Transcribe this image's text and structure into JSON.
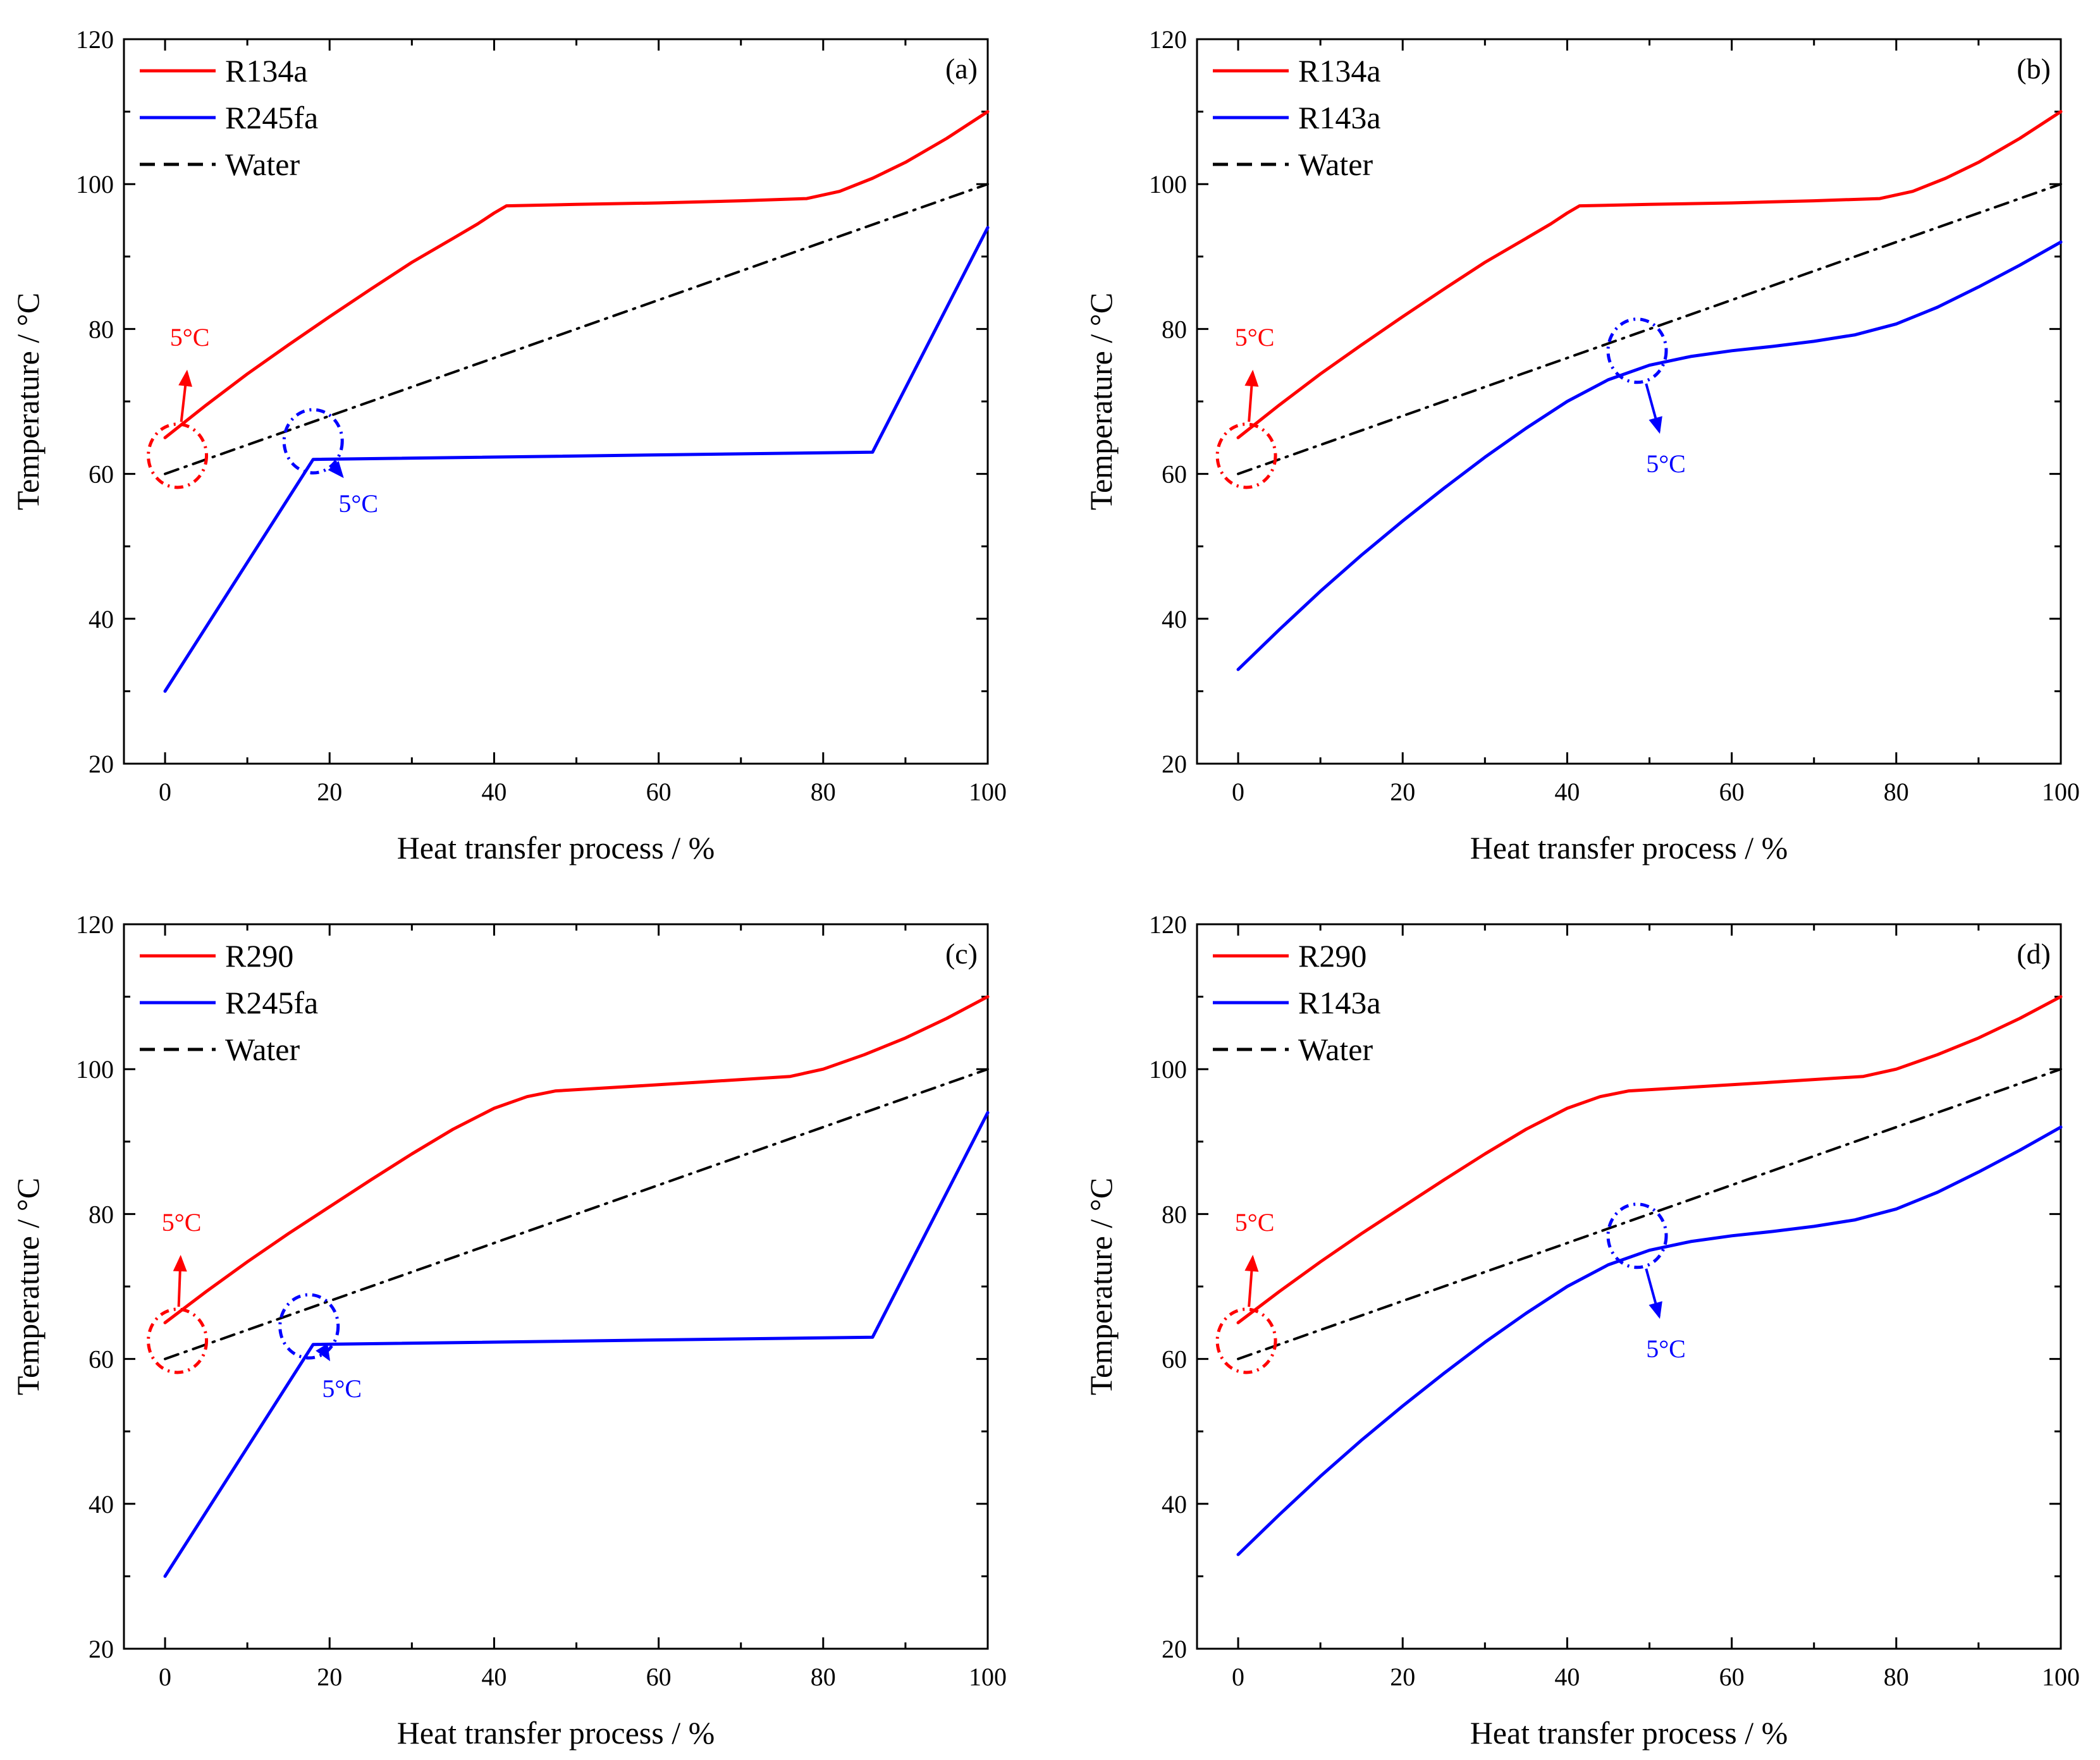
{
  "chart_data": [
    {
      "type": "line",
      "panel_label": "(a)",
      "xlabel": "Heat transfer process / %",
      "ylabel": "Temperature / °C",
      "xlim": [
        -5,
        100
      ],
      "ylim": [
        20,
        120
      ],
      "xticks": [
        0,
        20,
        40,
        60,
        80,
        100
      ],
      "yticks": [
        20,
        40,
        60,
        80,
        100,
        120
      ],
      "legend_position": "top-left",
      "series": [
        {
          "name": "R134a",
          "color": "#ff0000",
          "style": "solid",
          "x": [
            0,
            5,
            10,
            15,
            20,
            25,
            30,
            35,
            38,
            40,
            41.5,
            50,
            60,
            70,
            78,
            82,
            86,
            90,
            95,
            100
          ],
          "y": [
            65,
            69.5,
            73.8,
            77.8,
            81.7,
            85.5,
            89.2,
            92.5,
            94.5,
            96,
            97,
            97.2,
            97.4,
            97.7,
            98,
            99,
            100.8,
            103,
            106.3,
            110
          ]
        },
        {
          "name": "R245fa",
          "color": "#0000ff",
          "style": "solid",
          "x": [
            0,
            18,
            86,
            100
          ],
          "y": [
            30,
            62,
            63,
            94
          ]
        },
        {
          "name": "Water",
          "color": "#000000",
          "style": "dashed",
          "x": [
            0,
            100
          ],
          "y": [
            60,
            100
          ]
        }
      ],
      "annotations": [
        {
          "text": "5°C",
          "color": "#ff0000",
          "circle_at": [
            1.5,
            62.5
          ],
          "label_at": [
            3,
            77.5
          ]
        },
        {
          "text": "5°C",
          "color": "#0000ff",
          "circle_at": [
            18,
            64.5
          ],
          "label_at": [
            23.5,
            57
          ]
        }
      ]
    },
    {
      "type": "line",
      "panel_label": "(b)",
      "xlabel": "Heat transfer process / %",
      "ylabel": "Temperature / °C",
      "xlim": [
        -5,
        100
      ],
      "ylim": [
        20,
        120
      ],
      "xticks": [
        0,
        20,
        40,
        60,
        80,
        100
      ],
      "yticks": [
        20,
        40,
        60,
        80,
        100,
        120
      ],
      "legend_position": "top-left",
      "series": [
        {
          "name": "R134a",
          "color": "#ff0000",
          "style": "solid",
          "x": [
            0,
            5,
            10,
            15,
            20,
            25,
            30,
            35,
            38,
            40,
            41.5,
            50,
            60,
            70,
            78,
            82,
            86,
            90,
            95,
            100
          ],
          "y": [
            65,
            69.5,
            73.8,
            77.8,
            81.7,
            85.5,
            89.2,
            92.5,
            94.5,
            96,
            97,
            97.2,
            97.4,
            97.7,
            98,
            99,
            100.8,
            103,
            106.3,
            110
          ]
        },
        {
          "name": "R143a",
          "color": "#0000ff",
          "style": "solid",
          "x": [
            0,
            5,
            10,
            15,
            20,
            25,
            30,
            35,
            40,
            45,
            50,
            55,
            60,
            65,
            70,
            75,
            80,
            85,
            90,
            95,
            100
          ],
          "y": [
            33,
            38.5,
            43.8,
            48.8,
            53.5,
            58,
            62.3,
            66.3,
            70,
            73,
            75,
            76.2,
            77,
            77.6,
            78.3,
            79.2,
            80.7,
            83,
            85.8,
            88.8,
            92
          ]
        },
        {
          "name": "Water",
          "color": "#000000",
          "style": "dashed",
          "x": [
            0,
            100
          ],
          "y": [
            60,
            100
          ]
        }
      ],
      "annotations": [
        {
          "text": "5°C",
          "color": "#ff0000",
          "circle_at": [
            1,
            62.5
          ],
          "label_at": [
            2,
            77.5
          ]
        },
        {
          "text": "5°C",
          "color": "#0000ff",
          "circle_at": [
            48.5,
            77
          ],
          "label_at": [
            52,
            62.5
          ]
        }
      ]
    },
    {
      "type": "line",
      "panel_label": "(c)",
      "xlabel": "Heat transfer process / %",
      "ylabel": "Temperature / °C",
      "xlim": [
        -5,
        100
      ],
      "ylim": [
        20,
        120
      ],
      "xticks": [
        0,
        20,
        40,
        60,
        80,
        100
      ],
      "yticks": [
        20,
        40,
        60,
        80,
        100,
        120
      ],
      "legend_position": "top-left",
      "series": [
        {
          "name": "R290",
          "color": "#ff0000",
          "style": "solid",
          "x": [
            0,
            5,
            10,
            15,
            20,
            25,
            30,
            35,
            40,
            44,
            47.5,
            55,
            65,
            76,
            80,
            85,
            90,
            95,
            100
          ],
          "y": [
            65,
            69.3,
            73.4,
            77.3,
            81,
            84.7,
            88.3,
            91.7,
            94.6,
            96.2,
            97,
            97.5,
            98.2,
            99,
            100,
            102,
            104.3,
            107,
            110
          ]
        },
        {
          "name": "R245fa",
          "color": "#0000ff",
          "style": "solid",
          "x": [
            0,
            18,
            86,
            100
          ],
          "y": [
            30,
            62,
            63,
            94
          ]
        },
        {
          "name": "Water",
          "color": "#000000",
          "style": "dashed",
          "x": [
            0,
            100
          ],
          "y": [
            60,
            100
          ]
        }
      ],
      "annotations": [
        {
          "text": "5°C",
          "color": "#ff0000",
          "circle_at": [
            1.5,
            62.5
          ],
          "label_at": [
            2,
            77.5
          ]
        },
        {
          "text": "5°C",
          "color": "#0000ff",
          "circle_at": [
            17.5,
            64.5
          ],
          "label_at": [
            21.5,
            57
          ]
        }
      ]
    },
    {
      "type": "line",
      "panel_label": "(d)",
      "xlabel": "Heat transfer process / %",
      "ylabel": "Temperature / °C",
      "xlim": [
        -5,
        100
      ],
      "ylim": [
        20,
        120
      ],
      "xticks": [
        0,
        20,
        40,
        60,
        80,
        100
      ],
      "yticks": [
        20,
        40,
        60,
        80,
        100,
        120
      ],
      "legend_position": "top-left",
      "series": [
        {
          "name": "R290",
          "color": "#ff0000",
          "style": "solid",
          "x": [
            0,
            5,
            10,
            15,
            20,
            25,
            30,
            35,
            40,
            44,
            47.5,
            55,
            65,
            76,
            80,
            85,
            90,
            95,
            100
          ],
          "y": [
            65,
            69.3,
            73.4,
            77.3,
            81,
            84.7,
            88.3,
            91.7,
            94.6,
            96.2,
            97,
            97.5,
            98.2,
            99,
            100,
            102,
            104.3,
            107,
            110
          ]
        },
        {
          "name": "R143a",
          "color": "#0000ff",
          "style": "solid",
          "x": [
            0,
            5,
            10,
            15,
            20,
            25,
            30,
            35,
            40,
            45,
            50,
            55,
            60,
            65,
            70,
            75,
            80,
            85,
            90,
            95,
            100
          ],
          "y": [
            33,
            38.5,
            43.8,
            48.8,
            53.5,
            58,
            62.3,
            66.3,
            70,
            73,
            75,
            76.2,
            77,
            77.6,
            78.3,
            79.2,
            80.7,
            83,
            85.8,
            88.8,
            92
          ]
        },
        {
          "name": "Water",
          "color": "#000000",
          "style": "dashed",
          "x": [
            0,
            100
          ],
          "y": [
            60,
            100
          ]
        }
      ],
      "annotations": [
        {
          "text": "5°C",
          "color": "#ff0000",
          "circle_at": [
            1,
            62.5
          ],
          "label_at": [
            2,
            77.5
          ]
        },
        {
          "text": "5°C",
          "color": "#0000ff",
          "circle_at": [
            48.5,
            77
          ],
          "label_at": [
            52,
            62.5
          ]
        }
      ]
    }
  ]
}
